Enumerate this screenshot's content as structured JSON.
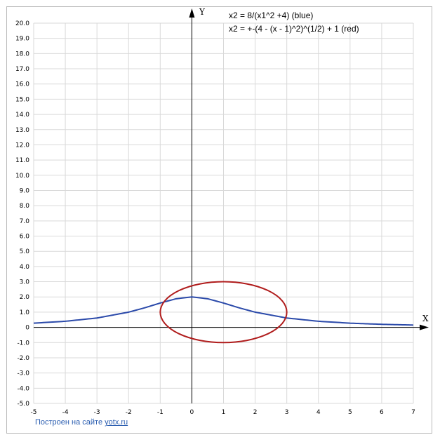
{
  "chart_data": {
    "type": "line",
    "xlabel": "X",
    "ylabel": "Y",
    "xlim": [
      -5,
      7
    ],
    "ylim": [
      -5,
      20
    ],
    "x_ticks": [
      "-5",
      "-4",
      "-3",
      "-2",
      "-1",
      "0",
      "1",
      "2",
      "3",
      "4",
      "5",
      "6",
      "7"
    ],
    "y_ticks": [
      "20.0",
      "19.0",
      "18.0",
      "17.0",
      "16.0",
      "15.0",
      "14.0",
      "13.0",
      "12.0",
      "11.0",
      "10.0",
      "9.0",
      "8.0",
      "7.0",
      "6.0",
      "5.0",
      "4.0",
      "3.0",
      "2.0",
      "1.0",
      "0",
      "-1.0",
      "-2.0",
      "-3.0",
      "-4.0",
      "-5.0"
    ],
    "grid": true,
    "legend": [
      "x2 = 8/(x1^2 +4) (blue)",
      "x2 = +-(4 - (x - 1)^2)^(1/2) + 1 (red)"
    ],
    "series": [
      {
        "color": "#2b4aaa",
        "x": [
          -5,
          -4,
          -3,
          -2,
          -1.5,
          -1,
          -0.5,
          0,
          0.5,
          1,
          1.5,
          2,
          3,
          4,
          5,
          6,
          7
        ],
        "y": [
          0.276,
          0.4,
          0.615,
          1.0,
          1.28,
          1.6,
          1.88,
          2.0,
          1.88,
          1.6,
          1.28,
          1.0,
          0.615,
          0.4,
          0.276,
          0.2,
          0.151
        ]
      },
      {
        "color": "#b01c1c",
        "x": [
          -1,
          -0.5,
          0,
          0.5,
          1,
          1.5,
          2,
          2.5,
          3,
          2.5,
          2,
          1.5,
          1,
          0.5,
          0,
          -0.5,
          -1
        ],
        "y": [
          1,
          2.32,
          2.73,
          2.94,
          3,
          2.94,
          2.73,
          2.32,
          1,
          -0.32,
          -0.73,
          -0.94,
          -1,
          -0.94,
          -0.73,
          -0.32,
          1
        ]
      }
    ]
  },
  "footer": {
    "prefix": "Построен на сайте",
    "link": "yotx.ru"
  }
}
